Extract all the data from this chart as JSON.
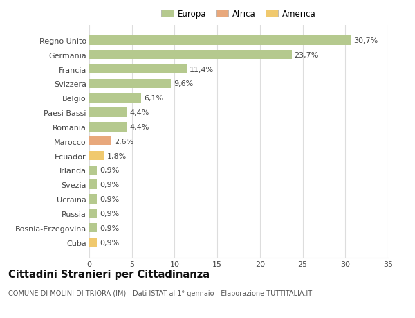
{
  "categories": [
    "Regno Unito",
    "Germania",
    "Francia",
    "Svizzera",
    "Belgio",
    "Paesi Bassi",
    "Romania",
    "Marocco",
    "Ecuador",
    "Irlanda",
    "Svezia",
    "Ucraina",
    "Russia",
    "Bosnia-Erzegovina",
    "Cuba"
  ],
  "values": [
    30.7,
    23.7,
    11.4,
    9.6,
    6.1,
    4.4,
    4.4,
    2.6,
    1.8,
    0.9,
    0.9,
    0.9,
    0.9,
    0.9,
    0.9
  ],
  "labels": [
    "30,7%",
    "23,7%",
    "11,4%",
    "9,6%",
    "6,1%",
    "4,4%",
    "4,4%",
    "2,6%",
    "1,8%",
    "0,9%",
    "0,9%",
    "0,9%",
    "0,9%",
    "0,9%",
    "0,9%"
  ],
  "continent": [
    "Europa",
    "Europa",
    "Europa",
    "Europa",
    "Europa",
    "Europa",
    "Europa",
    "Africa",
    "America",
    "Europa",
    "Europa",
    "Europa",
    "Europa",
    "Europa",
    "America"
  ],
  "colors": {
    "Europa": "#b5c98e",
    "Africa": "#e8a87c",
    "America": "#f0c96e"
  },
  "legend": [
    "Europa",
    "Africa",
    "America"
  ],
  "legend_colors": [
    "#b5c98e",
    "#e8a87c",
    "#f0c96e"
  ],
  "title": "Cittadini Stranieri per Cittadinanza",
  "subtitle": "COMUNE DI MOLINI DI TRIORA (IM) - Dati ISTAT al 1° gennaio - Elaborazione TUTTITALIA.IT",
  "xlim": [
    0,
    35
  ],
  "xticks": [
    0,
    5,
    10,
    15,
    20,
    25,
    30,
    35
  ],
  "background_color": "#ffffff",
  "grid_color": "#dddddd",
  "bar_height": 0.65,
  "label_fontsize": 8,
  "tick_fontsize": 8,
  "title_fontsize": 10.5,
  "subtitle_fontsize": 7
}
